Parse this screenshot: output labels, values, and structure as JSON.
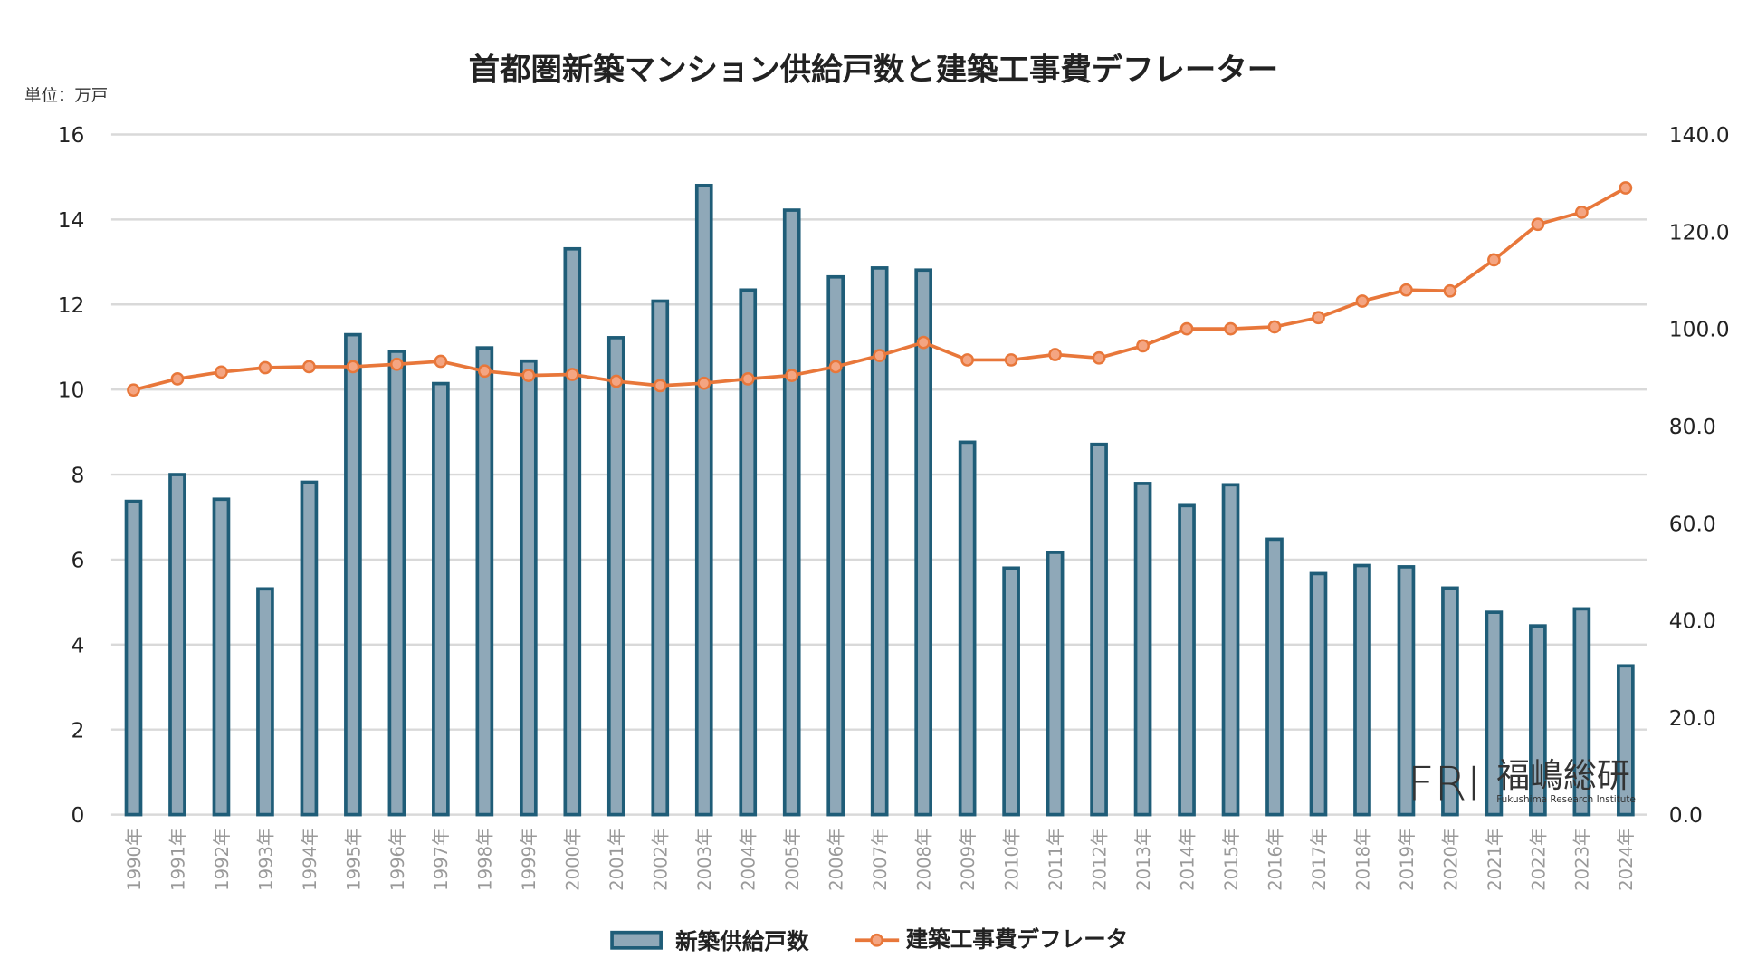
{
  "chart_data": {
    "type": "bar+line",
    "title": "首都圏新築マンション供給戸数と建築工事費デフレーター",
    "unit_label": "単位：万戸",
    "categories": [
      "1990年",
      "1991年",
      "1992年",
      "1993年",
      "1994年",
      "1995年",
      "1996年",
      "1997年",
      "1998年",
      "1999年",
      "2000年",
      "2001年",
      "2002年",
      "2003年",
      "2004年",
      "2005年",
      "2006年",
      "2007年",
      "2008年",
      "2009年",
      "2010年",
      "2011年",
      "2012年",
      "2013年",
      "2014年",
      "2015年",
      "2016年",
      "2017年",
      "2018年",
      "2019年",
      "2020年",
      "2021年",
      "2022年",
      "2023年",
      "2024年"
    ],
    "series": [
      {
        "name": "新築供給戸数",
        "type": "bar",
        "axis": "left",
        "color": "#8fa8b8",
        "stroke": "#1f5d78",
        "values": [
          7.37,
          8.0,
          7.42,
          5.31,
          7.82,
          11.29,
          10.9,
          10.14,
          10.98,
          10.67,
          13.31,
          11.22,
          12.08,
          14.8,
          12.34,
          14.22,
          12.65,
          12.86,
          12.81,
          8.76,
          5.8,
          6.17,
          8.71,
          7.79,
          7.27,
          7.76,
          6.48,
          5.67,
          5.86,
          5.83,
          5.33,
          4.76,
          4.44,
          4.84,
          3.5
        ]
      },
      {
        "name": "建築工事費デフレータ",
        "type": "line",
        "axis": "right",
        "color": "#e8773a",
        "marker_fill": "#f4a582",
        "values": [
          87.4,
          89.7,
          91.1,
          92.0,
          92.2,
          92.2,
          92.7,
          93.3,
          91.3,
          90.4,
          90.6,
          89.2,
          88.3,
          88.8,
          89.7,
          90.4,
          92.2,
          94.5,
          97.2,
          93.6,
          93.6,
          94.7,
          94.0,
          96.5,
          100.0,
          100.0,
          100.4,
          102.3,
          105.7,
          108.0,
          107.8,
          114.2,
          121.5,
          124.0,
          129.0
        ]
      }
    ],
    "left_axis": {
      "ylim": [
        0,
        16
      ],
      "ticks": [
        "0",
        "2",
        "4",
        "6",
        "8",
        "10",
        "12",
        "14",
        "16"
      ]
    },
    "right_axis": {
      "ylim": [
        0,
        140
      ],
      "ticks": [
        "0.0",
        "20.0",
        "40.0",
        "60.0",
        "80.0",
        "100.0",
        "120.0",
        "140.0"
      ]
    },
    "grid": true,
    "legend_position": "bottom"
  },
  "logo": {
    "mark": "FRI",
    "name": "福嶋総研",
    "sub": "Fukushima Research Institute"
  }
}
